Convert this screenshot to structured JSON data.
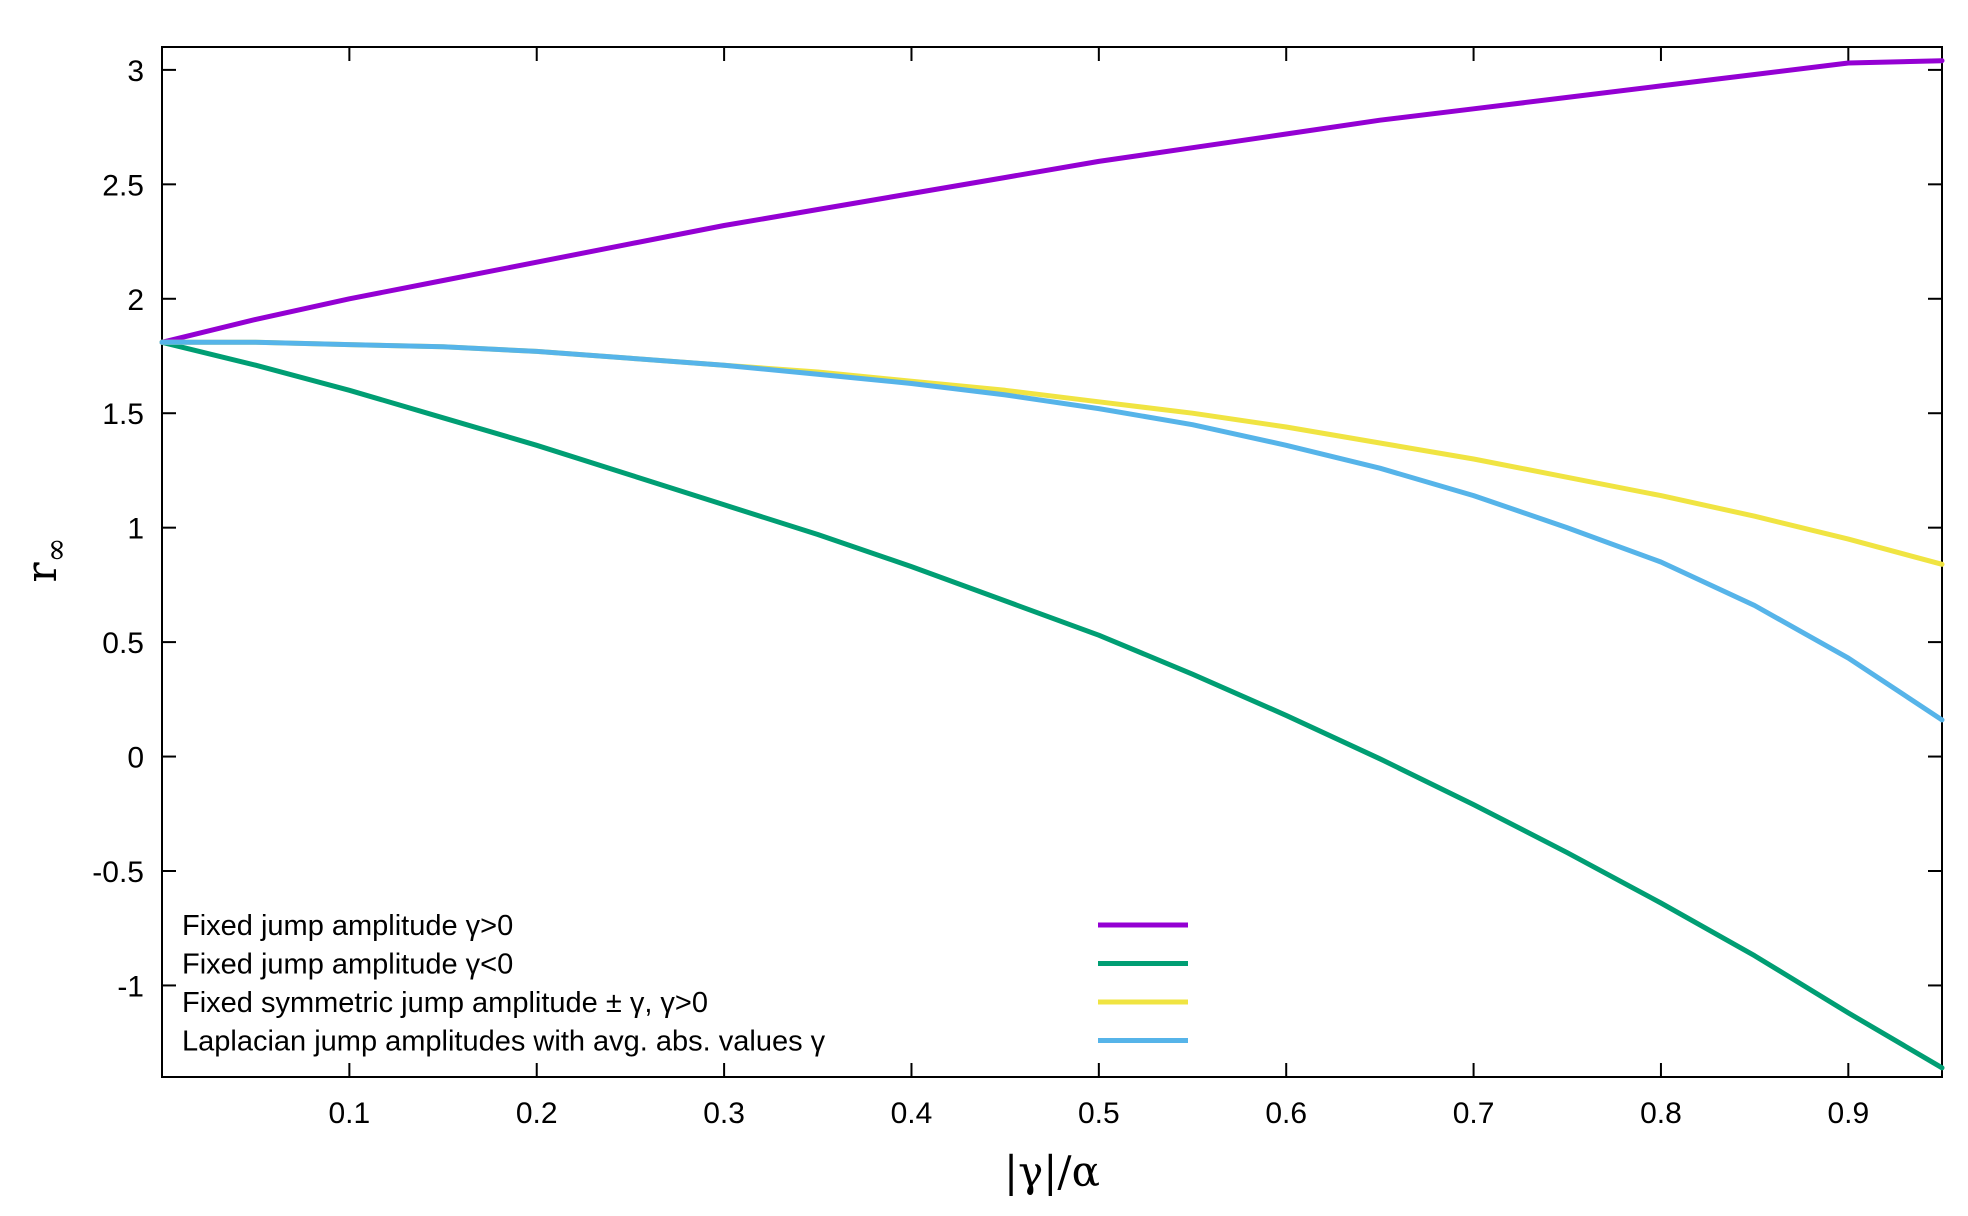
{
  "chart_data": {
    "type": "line",
    "xlabel": "|γ|/α",
    "ylabel_main": "r",
    "ylabel_sub": "∞",
    "xlim": [
      0.0,
      0.95
    ],
    "ylim": [
      -1.4,
      3.1
    ],
    "x_ticks": [
      0.1,
      0.2,
      0.3,
      0.4,
      0.5,
      0.6,
      0.7,
      0.8,
      0.9
    ],
    "x_tick_labels": [
      "0.1",
      "0.2",
      "0.3",
      "0.4",
      "0.5",
      "0.6",
      "0.7",
      "0.8",
      "0.9"
    ],
    "y_ticks": [
      -1,
      -0.5,
      0,
      0.5,
      1,
      1.5,
      2,
      2.5,
      3
    ],
    "y_tick_labels": [
      "-1",
      "-0.5",
      "0",
      "0.5",
      "1",
      "1.5",
      "2",
      "2.5",
      "3"
    ],
    "grid": false,
    "legend_position": "bottom-left",
    "series": [
      {
        "name": "Fixed jump amplitude γ>0",
        "color": "#9400d3",
        "x": [
          0.0,
          0.05,
          0.1,
          0.15,
          0.2,
          0.25,
          0.3,
          0.35,
          0.4,
          0.45,
          0.5,
          0.55,
          0.6,
          0.65,
          0.7,
          0.75,
          0.8,
          0.85,
          0.9,
          0.95
        ],
        "y": [
          1.81,
          1.91,
          2.0,
          2.08,
          2.16,
          2.24,
          2.32,
          2.39,
          2.46,
          2.53,
          2.6,
          2.66,
          2.72,
          2.78,
          2.83,
          2.88,
          2.93,
          2.98,
          3.03,
          3.04
        ]
      },
      {
        "name": "Fixed jump amplitude γ<0",
        "color": "#009e73",
        "x": [
          0.0,
          0.05,
          0.1,
          0.15,
          0.2,
          0.25,
          0.3,
          0.35,
          0.4,
          0.45,
          0.5,
          0.55,
          0.6,
          0.65,
          0.7,
          0.75,
          0.8,
          0.85,
          0.9,
          0.95
        ],
        "y": [
          1.81,
          1.71,
          1.6,
          1.48,
          1.36,
          1.23,
          1.1,
          0.97,
          0.83,
          0.68,
          0.53,
          0.36,
          0.18,
          -0.01,
          -0.21,
          -0.42,
          -0.64,
          -0.87,
          -1.12,
          -1.36
        ]
      },
      {
        "name": "Fixed symmetric jump amplitude ± γ, γ>0",
        "color": "#f0e442",
        "x": [
          0.0,
          0.05,
          0.1,
          0.15,
          0.2,
          0.25,
          0.3,
          0.35,
          0.4,
          0.45,
          0.5,
          0.55,
          0.6,
          0.65,
          0.7,
          0.75,
          0.8,
          0.85,
          0.9,
          0.95
        ],
        "y": [
          1.81,
          1.81,
          1.8,
          1.79,
          1.77,
          1.74,
          1.71,
          1.68,
          1.64,
          1.6,
          1.55,
          1.5,
          1.44,
          1.37,
          1.3,
          1.22,
          1.14,
          1.05,
          0.95,
          0.84
        ]
      },
      {
        "name": "Laplacian jump amplitudes with avg. abs. values γ",
        "color": "#56b4e9",
        "x": [
          0.0,
          0.05,
          0.1,
          0.15,
          0.2,
          0.25,
          0.3,
          0.35,
          0.4,
          0.45,
          0.5,
          0.55,
          0.6,
          0.65,
          0.7,
          0.75,
          0.8,
          0.85,
          0.9,
          0.95
        ],
        "y": [
          1.81,
          1.81,
          1.8,
          1.79,
          1.77,
          1.74,
          1.71,
          1.67,
          1.63,
          1.58,
          1.52,
          1.45,
          1.36,
          1.26,
          1.14,
          1.0,
          0.85,
          0.66,
          0.43,
          0.16
        ]
      }
    ]
  }
}
